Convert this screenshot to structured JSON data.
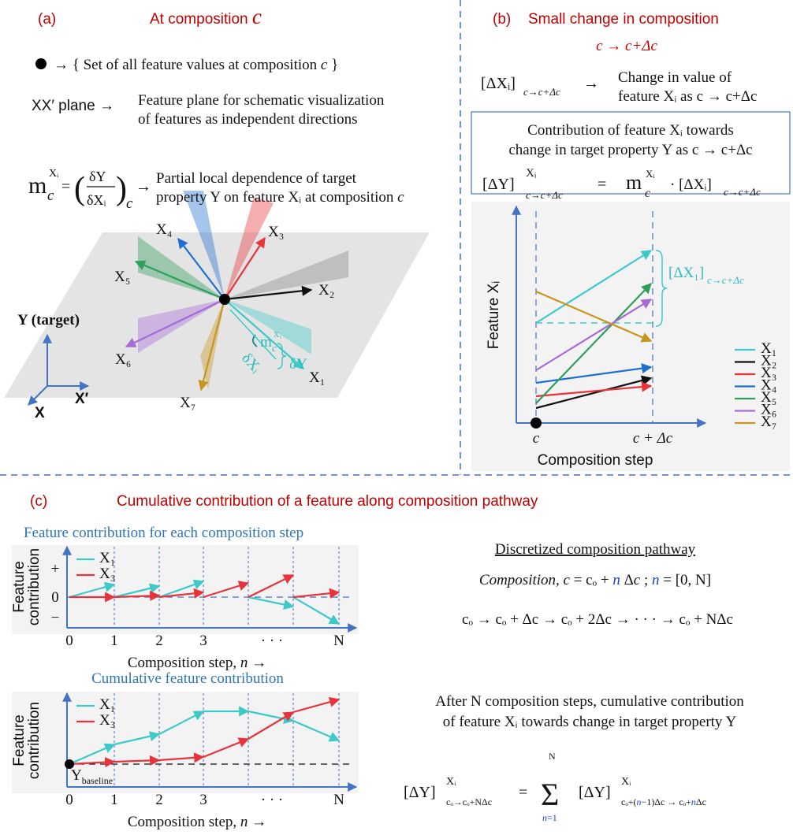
{
  "panel_a": {
    "label": "(a)",
    "title": [
      "At composition ",
      "c"
    ],
    "dot_legend": [
      "→ { Set of all feature values at composition ",
      "c",
      " }"
    ],
    "plane_key": "XX′ plane →",
    "plane_desc": [
      "Feature plane for schematic visualization",
      "of features as independent directions"
    ],
    "dependence_formula": [
      "m",
      "Xᵢ",
      "c",
      "=",
      "(",
      "δY",
      "δXᵢ",
      ")",
      "c",
      "→"
    ],
    "dependence_desc": [
      "Partial local dependence of target",
      "property Y on feature Xᵢ at composition ",
      "c"
    ],
    "features": [
      "X₁",
      "X₂",
      "X₃",
      "X₄",
      "X₅",
      "X₆",
      "X₇"
    ],
    "slope_label": [
      "m",
      "X₁",
      "c"
    ],
    "delta_y": "δY",
    "delta_x": "δXᵢ",
    "axes": [
      "Y (target)",
      "X′",
      "X"
    ]
  },
  "panel_b": {
    "label": "(b)",
    "title": "Small change in composition",
    "subtitle": "c → c+Δc",
    "change_formula": [
      "[ΔXᵢ]",
      "c→c+Δc",
      "→"
    ],
    "change_desc": [
      "Change in value of",
      "feature Xᵢ as c → c+Δc"
    ],
    "box_text": [
      "Contribution of feature Xᵢ towards",
      "change in target property Y as c → c+Δc"
    ],
    "box_formula": [
      "[ΔY]",
      "Xᵢ",
      "c→c+Δc",
      "=",
      "m",
      "Xᵢ",
      "c",
      "· [ΔXᵢ]",
      "c→c+Δc"
    ],
    "chart": {
      "y_label": "Feature Xᵢ",
      "x_ticks": [
        "c",
        "c + Δc"
      ],
      "x_label": "Composition step",
      "annotation": [
        "[ΔX₁]",
        "c→c+Δc"
      ],
      "legend": [
        "X₁",
        "X₂",
        "X₃",
        "X₄",
        "X₅",
        "X₆",
        "X₇"
      ]
    }
  },
  "panel_c": {
    "label": "(c)",
    "title": "Cumulative contribution of a feature along composition pathway",
    "step_chart": {
      "title": "Feature contribution for each composition step",
      "y_label": [
        "Feature",
        "contribution"
      ],
      "y_ticks": [
        "+",
        "0",
        "−"
      ],
      "x_ticks": [
        "0",
        "1",
        "2",
        "3",
        "· · ·",
        "N"
      ],
      "x_label": [
        "Composition step, ",
        "n",
        " →"
      ],
      "legend": [
        "X₁",
        "X₃"
      ]
    },
    "cumulative_chart": {
      "title": "Cumulative feature contribution",
      "y_label": [
        "Feature",
        "contribution"
      ],
      "baseline": [
        "Y",
        "baseline"
      ],
      "x_ticks": [
        "0",
        "1",
        "2",
        "3",
        "· · ·",
        "N"
      ],
      "x_label": [
        "Composition step, ",
        "n",
        " →"
      ],
      "legend": [
        "X₁",
        "X₃"
      ]
    },
    "pathway": {
      "title": "Discretized composition pathway",
      "composition": [
        "Composition, c",
        " = cₒ + ",
        "n",
        " Δ",
        "c",
        "    ;  ",
        "n",
        " = [0, N]"
      ],
      "sequence": "cₒ → cₒ + Δc → cₒ + 2Δc →  · · ·  → cₒ + NΔc"
    },
    "cumulative_text": [
      "After N composition steps, cumulative contribution",
      "of feature Xᵢ towards change in target property Y"
    ],
    "cumulative_formula": [
      "[ΔY]",
      "Xᵢ",
      "cₒ→cₒ+NΔc",
      "=",
      "Σ",
      "N",
      "n",
      "=1",
      "[ΔY]",
      "Xᵢ",
      "cₒ+(",
      "n",
      "−1)Δc → cₒ+",
      "n",
      "Δc"
    ]
  }
}
